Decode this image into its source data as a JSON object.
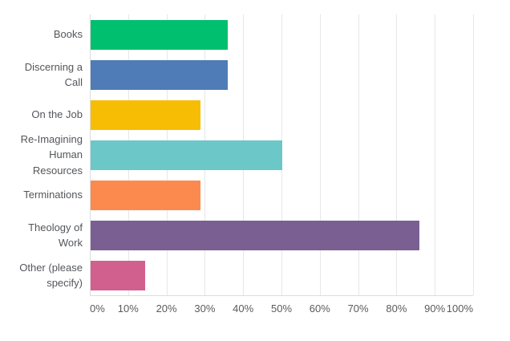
{
  "chart_data": {
    "type": "bar",
    "orientation": "horizontal",
    "title": "",
    "xlabel": "",
    "ylabel": "",
    "categories": [
      "Books",
      "Discerning a Call",
      "On the Job",
      "Re-Imagining Human Resources",
      "Terminations",
      "Theology of Work",
      "Other (please specify)"
    ],
    "values": [
      35.71,
      35.71,
      28.57,
      50,
      28.57,
      85.71,
      14.29
    ],
    "bar_colors": [
      "#00BF6F",
      "#4F7CB7",
      "#F7BD05",
      "#6CC7C9",
      "#FC8A4F",
      "#7A6092",
      "#D2608E"
    ],
    "x_ticks": [
      "0%",
      "10%",
      "20%",
      "30%",
      "40%",
      "50%",
      "60%",
      "70%",
      "80%",
      "90%",
      "100%"
    ],
    "xlim": [
      0,
      100
    ],
    "grid": "vertical-only",
    "legend": "none"
  },
  "colors": {
    "background": "#FFFFFF",
    "label_text": "#53565A",
    "tick_text": "#595B5F",
    "gridline": "#E7E7E7",
    "axis_line": "#DCDCDC"
  }
}
